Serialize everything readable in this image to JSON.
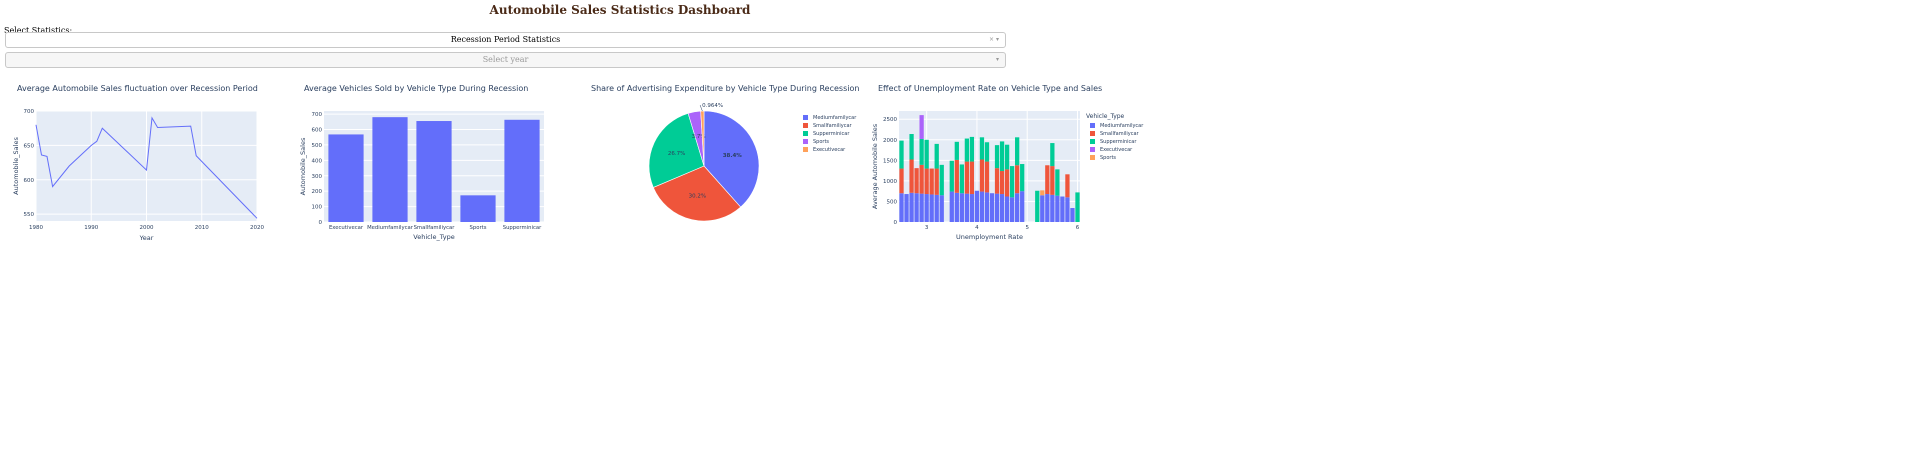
{
  "header": {
    "title": "Automobile Sales Statistics Dashboard"
  },
  "controls": {
    "select_label": "Select Statistics:",
    "statistics_value": "Recession Period Statistics",
    "clear_icon": "×",
    "chevron_icon": "▾",
    "year_placeholder": "Select year",
    "year_chevron_icon": "▾"
  },
  "colors": {
    "plot_bg": "#e5ecf6",
    "grid": "#ffffff",
    "text": "#2a3f5f",
    "Mediumfamilycar": "#636efa",
    "Smallfamiliycar": "#ef553b",
    "Supperminicar": "#00cc96",
    "Sports": "#ab63fa",
    "Executivecar": "#ffa15a"
  },
  "chart_data": [
    {
      "id": "line",
      "type": "line",
      "title": "Average Automobile Sales fluctuation over Recession Period",
      "xlabel": "Year",
      "ylabel": "Automobile_Sales",
      "xlim": [
        1980,
        2020
      ],
      "ylim": [
        540,
        700
      ],
      "xticks": [
        1980,
        1990,
        2000,
        2010,
        2020
      ],
      "yticks": [
        550,
        600,
        650,
        700
      ],
      "x": [
        1980,
        1981,
        1982,
        1983,
        1986,
        1990,
        1991,
        1992,
        2000,
        2001,
        2002,
        2008,
        2009,
        2020
      ],
      "values": [
        680,
        636,
        634,
        590,
        620,
        650,
        656,
        675,
        614,
        690,
        676,
        678,
        635,
        544
      ],
      "grid": true
    },
    {
      "id": "bar",
      "type": "bar",
      "title": "Average Vehicles Sold by Vehicle Type During Recession",
      "xlabel": "Vehicle_Type",
      "ylabel": "Automobile_Sales",
      "ylim": [
        0,
        720
      ],
      "yticks": [
        0,
        100,
        200,
        300,
        400,
        500,
        600,
        700
      ],
      "categories": [
        "Executivecar",
        "Mediumfamilycar",
        "Smallfamiliycar",
        "Sports",
        "Supperminicar"
      ],
      "values": [
        568,
        680,
        655,
        173,
        663
      ],
      "grid": true
    },
    {
      "id": "pie",
      "type": "pie",
      "title": "Share of Advertising Expenditure by Vehicle Type During Recession",
      "labels": [
        "Mediumfamilycar",
        "Smallfamiliycar",
        "Supperminicar",
        "Sports",
        "Executivecar"
      ],
      "values": [
        38.4,
        30.2,
        26.7,
        3.7,
        0.964
      ],
      "label_texts": [
        "38.4%",
        "30.2%",
        "26.7%",
        "3.7%",
        "0.964%"
      ],
      "legend": "right"
    },
    {
      "id": "stack",
      "type": "bar",
      "title": "Effect of Unemployment Rate on Vehicle Type and Sales",
      "xlabel": "Unemployment Rate",
      "ylabel": "Average Automobile Sales",
      "xlim": [
        2.45,
        6.05
      ],
      "ylim": [
        0,
        2700
      ],
      "xticks": [
        3,
        4,
        5,
        6
      ],
      "yticks": [
        0,
        500,
        1000,
        1500,
        2000,
        2500
      ],
      "stacked": true,
      "legend_title": "Vehicle_Type",
      "legend": "right",
      "bar_width": 0.085,
      "x": [
        2.5,
        2.6,
        2.7,
        2.8,
        2.9,
        3.0,
        3.1,
        3.2,
        3.3,
        3.5,
        3.6,
        3.7,
        3.8,
        3.9,
        4.0,
        4.1,
        4.2,
        4.3,
        4.4,
        4.5,
        4.6,
        4.7,
        4.8,
        4.9,
        5.0,
        5.2,
        5.3,
        5.4,
        5.5,
        5.6,
        5.7,
        5.8,
        5.9,
        6.0
      ],
      "series": [
        {
          "name": "Mediumfamilycar",
          "values": [
            700,
            680,
            710,
            700,
            690,
            680,
            670,
            660,
            650,
            740,
            710,
            700,
            690,
            680,
            760,
            740,
            720,
            700,
            690,
            680,
            620,
            600,
            700,
            750,
            0,
            0,
            650,
            680,
            660,
            640,
            620,
            600,
            340,
            0
          ]
        },
        {
          "name": "Smallfamiliycar",
          "values": [
            600,
            0,
            810,
            610,
            700,
            620,
            630,
            640,
            0,
            0,
            800,
            0,
            780,
            790,
            0,
            780,
            750,
            0,
            620,
            560,
            660,
            0,
            680,
            0,
            0,
            0,
            0,
            700,
            700,
            0,
            0,
            560,
            0,
            0
          ]
        },
        {
          "name": "Supperminicar",
          "values": [
            680,
            0,
            620,
            0,
            630,
            700,
            0,
            600,
            740,
            750,
            440,
            700,
            560,
            600,
            0,
            540,
            470,
            0,
            560,
            720,
            600,
            760,
            680,
            660,
            0,
            760,
            0,
            0,
            560,
            640,
            0,
            0,
            0,
            720
          ]
        },
        {
          "name": "Sports",
          "values": [
            0,
            0,
            0,
            0,
            580,
            0,
            0,
            0,
            0,
            0,
            0,
            0,
            0,
            0,
            0,
            0,
            0,
            0,
            0,
            0,
            0,
            0,
            0,
            0,
            0,
            0,
            0,
            0,
            0,
            0,
            0,
            0,
            0,
            0
          ]
        },
        {
          "name": "Executivecar",
          "values": [
            0,
            0,
            0,
            0,
            0,
            0,
            0,
            0,
            0,
            0,
            0,
            0,
            0,
            0,
            0,
            0,
            0,
            0,
            0,
            0,
            0,
            0,
            0,
            0,
            0,
            0,
            120,
            0,
            0,
            0,
            0,
            0,
            0,
            0
          ]
        }
      ]
    }
  ]
}
